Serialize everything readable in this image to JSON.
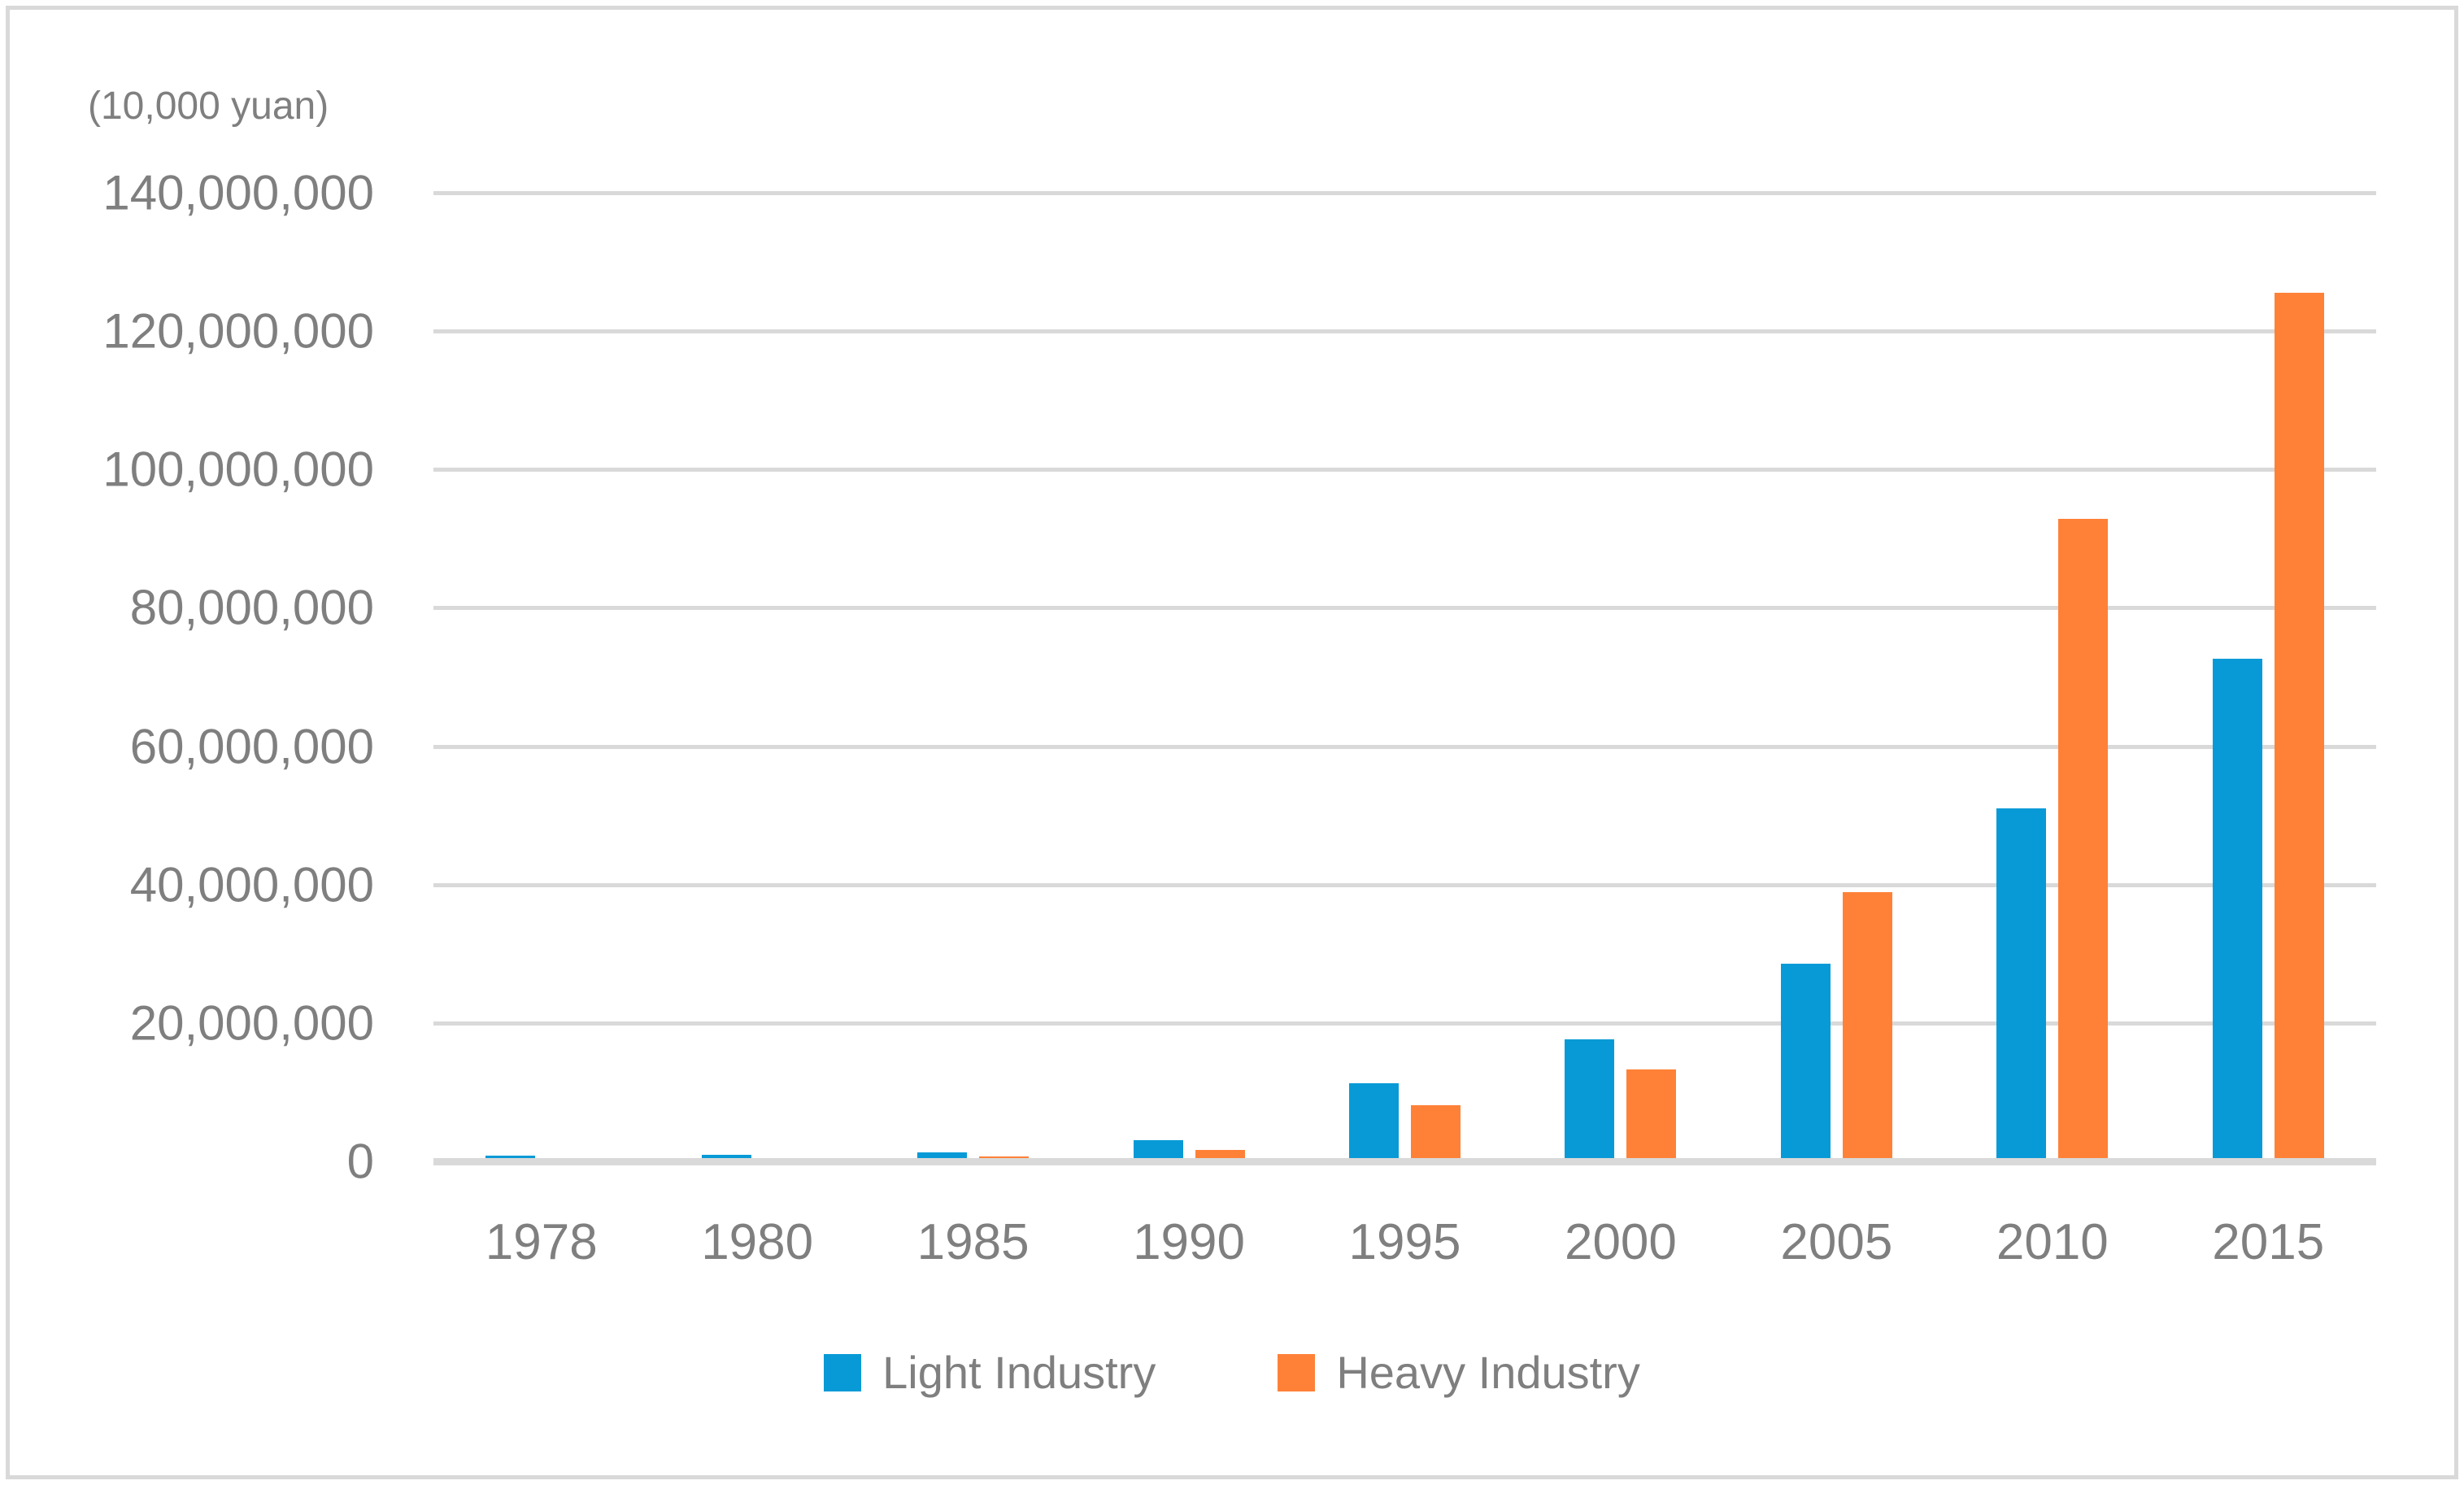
{
  "unit_label": "(10,000 yuan)",
  "colors": {
    "light_industry": "#089ad6",
    "heavy_industry": "#ff8138",
    "axis_text": "#7f7f7f",
    "gridline": "#d9d9d9",
    "background": "#ffffff",
    "border": "#d9d9d9"
  },
  "chart_data": {
    "type": "bar",
    "title": "",
    "xlabel": "",
    "ylabel": "(10,000 yuan)",
    "categories": [
      "1978",
      "1980",
      "1985",
      "1990",
      "1995",
      "2000",
      "2005",
      "2010",
      "2015"
    ],
    "series": [
      {
        "name": "Light Industry",
        "color": "#089ad6",
        "values": [
          800000,
          900000,
          1300000,
          3000000,
          11300000,
          17600000,
          28600000,
          51000000,
          72700000
        ]
      },
      {
        "name": "Heavy Industry",
        "color": "#ff8138",
        "values": [
          0,
          0,
          700000,
          1600000,
          8100000,
          13300000,
          38900000,
          92900000,
          125500000
        ]
      }
    ],
    "ylim": [
      0,
      140000000
    ],
    "ytick_step": 20000000,
    "ytick_labels": [
      "0",
      "20,000,000",
      "40,000,000",
      "60,000,000",
      "80,000,000",
      "100,000,000",
      "120,000,000",
      "140,000,000"
    ],
    "grid": true,
    "legend_position": "bottom"
  }
}
